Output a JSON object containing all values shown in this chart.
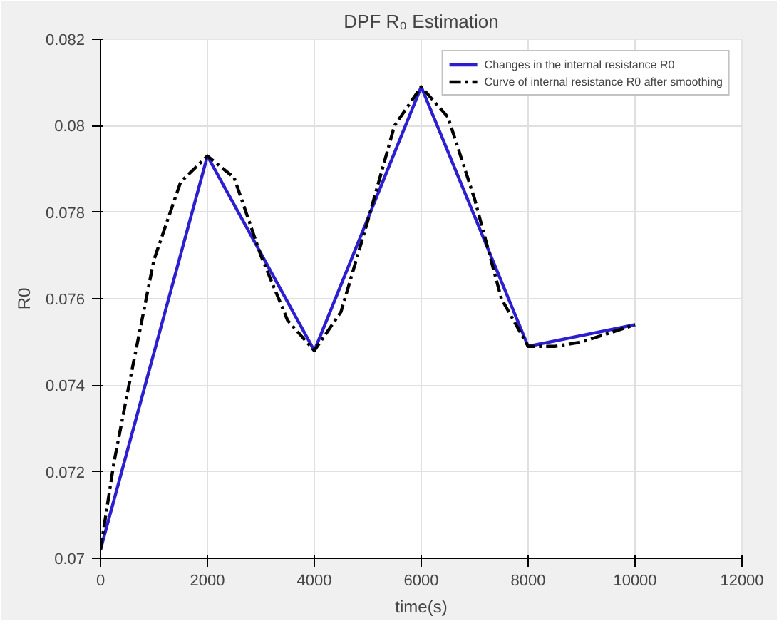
{
  "chart_data": {
    "type": "line",
    "title": "DPF R₀ Estimation",
    "xlabel": "time(s)",
    "ylabel": "R0",
    "xlim": [
      0,
      12000
    ],
    "xticks": [
      0,
      2000,
      4000,
      6000,
      8000,
      10000,
      12000
    ],
    "ylim": [
      0.07,
      0.082
    ],
    "yticks": [
      0.07,
      0.072,
      0.074,
      0.076,
      0.078,
      0.08,
      0.082
    ],
    "grid": true,
    "legend": "top right",
    "marker": "none",
    "series": [
      {
        "name": "Changes in the internal resistance R0",
        "color": "#2b1fd0",
        "line_style": "solid",
        "x": [
          0,
          2000,
          4000,
          6000,
          8000,
          10000
        ],
        "values": [
          0.0702,
          0.0793,
          0.0748,
          0.0809,
          0.0749,
          0.0754
        ]
      },
      {
        "name": "Curve of internal resistance R0 after smoothing",
        "color": "#000000",
        "line_style": "dashdot",
        "x": [
          0,
          250,
          500,
          1000,
          1500,
          2000,
          2500,
          3000,
          3500,
          4000,
          4500,
          5000,
          5500,
          6000,
          6500,
          7000,
          7500,
          8000,
          8500,
          9000,
          9500,
          10000
        ],
        "values": [
          0.0702,
          0.0722,
          0.0738,
          0.0769,
          0.0787,
          0.0793,
          0.0788,
          0.077,
          0.0755,
          0.0748,
          0.0757,
          0.0778,
          0.08,
          0.0809,
          0.0802,
          0.0783,
          0.076,
          0.0749,
          0.0749,
          0.075,
          0.0752,
          0.0754
        ]
      }
    ]
  }
}
